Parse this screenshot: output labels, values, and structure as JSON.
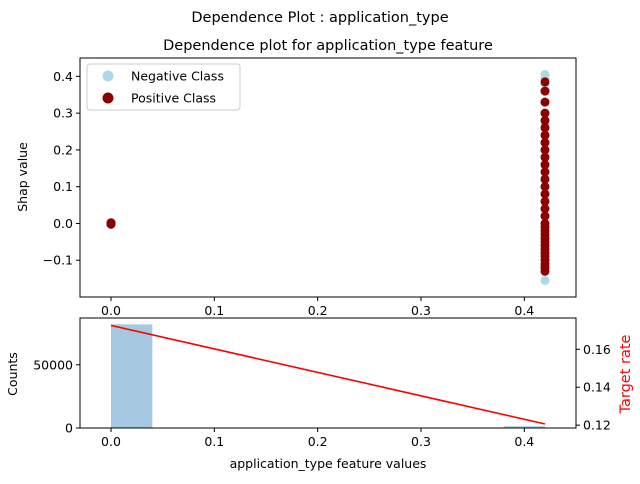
{
  "suptitle": "Dependence Plot : application_type",
  "chart_data": [
    {
      "type": "scatter",
      "title": "Dependence plot for application_type feature",
      "xlabel": "",
      "ylabel": "Shap value",
      "xlim": [
        -0.03,
        0.45
      ],
      "ylim": [
        -0.2,
        0.45
      ],
      "xticks": [
        0.0,
        0.1,
        0.2,
        0.3,
        0.4
      ],
      "xtick_labels": [
        "0.0",
        "0.1",
        "0.2",
        "0.3",
        "0.4"
      ],
      "yticks": [
        -0.1,
        0.0,
        0.1,
        0.2,
        0.3,
        0.4
      ],
      "ytick_labels": [
        "−0.1",
        "0.0",
        "0.1",
        "0.2",
        "0.3",
        "0.4"
      ],
      "legend_position": "top-left",
      "series": [
        {
          "name": "Negative Class",
          "color": "#add8e6",
          "x": [
            0.0,
            0.0,
            0.42,
            0.42,
            0.42,
            0.42,
            0.42,
            0.42,
            0.42,
            0.42,
            0.42,
            0.42,
            0.42,
            0.42,
            0.42,
            0.42,
            0.42,
            0.42,
            0.42,
            0.42
          ],
          "y": [
            0.0,
            -0.003,
            0.405,
            0.395,
            0.38,
            0.36,
            0.33,
            0.3,
            0.27,
            0.24,
            0.2,
            0.16,
            0.12,
            0.08,
            0.04,
            0.0,
            -0.04,
            -0.08,
            -0.12,
            -0.155
          ]
        },
        {
          "name": "Positive Class",
          "color": "#8b0000",
          "x": [
            0.0,
            0.0,
            0.0,
            0.42,
            0.42,
            0.42,
            0.42,
            0.42,
            0.42,
            0.42,
            0.42,
            0.42,
            0.42,
            0.42,
            0.42,
            0.42,
            0.42,
            0.42,
            0.42,
            0.42,
            0.42,
            0.42,
            0.42,
            0.42,
            0.42,
            0.42,
            0.42,
            0.42,
            0.42,
            0.42,
            0.42,
            0.42,
            0.42,
            0.42,
            0.42
          ],
          "y": [
            0.0,
            -0.002,
            0.002,
            0.36,
            0.33,
            0.3,
            0.28,
            0.26,
            0.24,
            0.22,
            0.2,
            0.18,
            0.16,
            0.14,
            0.12,
            0.1,
            0.08,
            0.06,
            0.04,
            0.02,
            0.0,
            -0.01,
            -0.02,
            -0.03,
            -0.04,
            -0.05,
            -0.06,
            -0.07,
            -0.08,
            -0.09,
            -0.1,
            -0.11,
            -0.12,
            -0.13,
            0.385
          ]
        }
      ]
    },
    {
      "type": "bar",
      "title": "",
      "xlabel": "application_type feature values",
      "ylabel": "Counts",
      "y2label": "Target rate",
      "y2label_color": "#ff0000",
      "xlim": [
        -0.03,
        0.45
      ],
      "ylim": [
        0,
        87000
      ],
      "y2lim": [
        0.1185,
        0.1765
      ],
      "xticks": [
        0.0,
        0.1,
        0.2,
        0.3,
        0.4
      ],
      "xtick_labels": [
        "0.0",
        "0.1",
        "0.2",
        "0.3",
        "0.4"
      ],
      "yticks": [
        0,
        50000
      ],
      "ytick_labels": [
        "0",
        "50000"
      ],
      "y2ticks": [
        0.12,
        0.14,
        0.16
      ],
      "y2tick_labels": [
        "0.12",
        "0.14",
        "0.16"
      ],
      "bar_color": "#a6c9e2",
      "bars": [
        {
          "x0": 0.0,
          "x1": 0.04,
          "count": 82000
        },
        {
          "x0": 0.38,
          "x1": 0.42,
          "count": 1400
        }
      ],
      "target_rate_line": {
        "color": "#ff0000",
        "x": [
          0.0,
          0.42
        ],
        "y": [
          0.1726,
          0.1206
        ]
      }
    }
  ]
}
